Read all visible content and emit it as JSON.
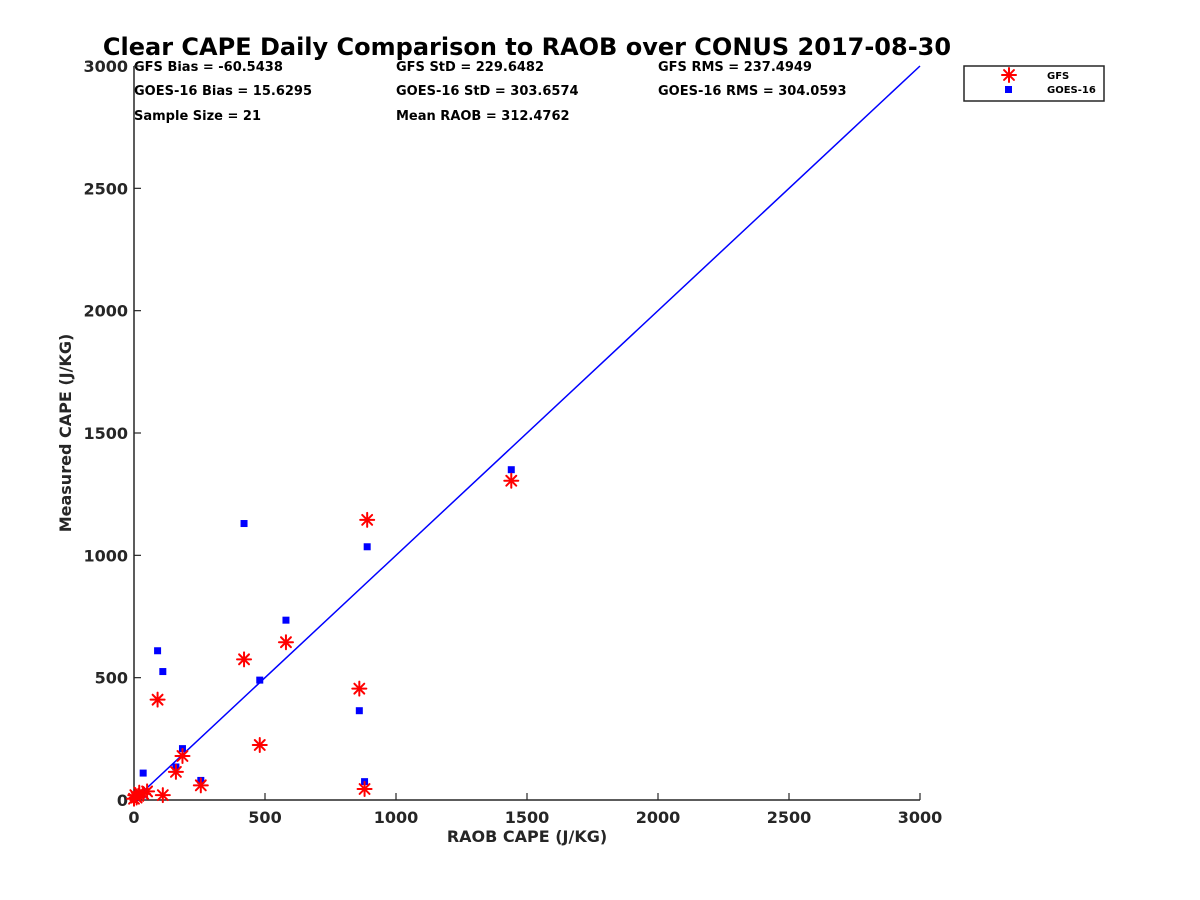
{
  "chart_data": {
    "type": "scatter",
    "title": "Clear CAPE Daily Comparison to RAOB over CONUS 2017-08-30",
    "xlabel": "RAOB CAPE (J/KG)",
    "ylabel": "Measured CAPE (J/KG)",
    "xlim": [
      0,
      3000
    ],
    "ylim": [
      0,
      3000
    ],
    "xticks": [
      0,
      500,
      1000,
      1500,
      2000,
      2500,
      3000
    ],
    "yticks": [
      0,
      500,
      1000,
      1500,
      2000,
      2500,
      3000
    ],
    "grid": false,
    "legend_position": "top-right",
    "stats": [
      [
        "GFS Bias = -60.5438",
        "GFS StD = 229.6482",
        "GFS RMS = 237.4949"
      ],
      [
        "GOES-16 Bias = 15.6295",
        "GOES-16 StD = 303.6574",
        "GOES-16 RMS = 304.0593"
      ],
      [
        "Sample Size = 21",
        "Mean RAOB = 312.4762"
      ]
    ],
    "reference_line": {
      "x": [
        0,
        3000
      ],
      "y": [
        0,
        3000
      ],
      "color": "#0000ff"
    },
    "series": [
      {
        "name": "GFS",
        "marker": "asterisk",
        "color": "#ff0000",
        "points": [
          [
            0,
            5
          ],
          [
            5,
            20
          ],
          [
            10,
            10
          ],
          [
            20,
            30
          ],
          [
            35,
            25
          ],
          [
            50,
            35
          ],
          [
            90,
            410
          ],
          [
            110,
            20
          ],
          [
            160,
            115
          ],
          [
            185,
            180
          ],
          [
            255,
            60
          ],
          [
            420,
            575
          ],
          [
            480,
            225
          ],
          [
            580,
            645
          ],
          [
            860,
            455
          ],
          [
            880,
            45
          ],
          [
            890,
            1145
          ],
          [
            1440,
            1305
          ]
        ]
      },
      {
        "name": "GOES-16",
        "marker": "square",
        "color": "#0000ff",
        "points": [
          [
            0,
            5
          ],
          [
            10,
            10
          ],
          [
            20,
            20
          ],
          [
            30,
            20
          ],
          [
            35,
            110
          ],
          [
            90,
            610
          ],
          [
            110,
            525
          ],
          [
            160,
            135
          ],
          [
            185,
            210
          ],
          [
            255,
            80
          ],
          [
            420,
            1130
          ],
          [
            480,
            490
          ],
          [
            580,
            735
          ],
          [
            860,
            365
          ],
          [
            880,
            75
          ],
          [
            890,
            1035
          ],
          [
            1440,
            1350
          ]
        ]
      }
    ]
  }
}
